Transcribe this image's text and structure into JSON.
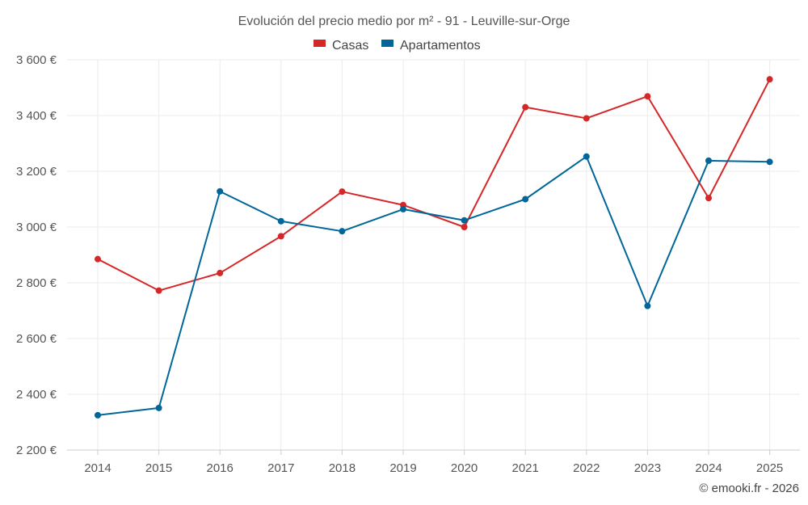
{
  "chart_data": {
    "type": "line",
    "title": "Evolución del precio medio por m² - 91 - Leuville-sur-Orge",
    "xlabel": "",
    "ylabel": "",
    "categories": [
      "2014",
      "2015",
      "2016",
      "2017",
      "2018",
      "2019",
      "2020",
      "2021",
      "2022",
      "2023",
      "2024",
      "2025"
    ],
    "ylim": [
      2200,
      3600
    ],
    "yticks": [
      2200,
      2400,
      2600,
      2800,
      3000,
      3200,
      3400,
      3600
    ],
    "ytick_labels": [
      "2 200 €",
      "2 400 €",
      "2 600 €",
      "2 800 €",
      "3 000 €",
      "3 200 €",
      "3 400 €",
      "3 600 €"
    ],
    "legend_position": "top-center",
    "grid": true,
    "series": [
      {
        "name": "Casas",
        "color": "#d62728",
        "values": [
          2885,
          2772,
          2835,
          2967,
          3127,
          3079,
          3000,
          3430,
          3390,
          3469,
          3104,
          3530
        ]
      },
      {
        "name": "Apartamentos",
        "color": "#006699",
        "values": [
          2325,
          2351,
          3128,
          3021,
          2985,
          3064,
          3024,
          3100,
          3253,
          2717,
          3238,
          3234
        ]
      }
    ],
    "credit": "© emooki.fr - 2026"
  }
}
